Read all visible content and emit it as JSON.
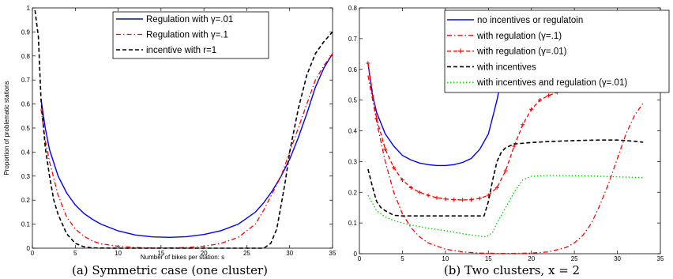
{
  "chart_data": [
    {
      "type": "line",
      "caption": "(a) Symmetric case (one cluster)",
      "xlabel": "Number of bikes per station: s",
      "ylabel": "Proportion of problematic stations",
      "xlim": [
        0,
        35
      ],
      "ylim": [
        0,
        1
      ],
      "xticks": [
        "0",
        "5",
        "10",
        "15",
        "20",
        "25",
        "30",
        "35"
      ],
      "yticks": [
        "0",
        "0.1",
        "0.2",
        "0.3",
        "0.4",
        "0.5",
        "0.6",
        "0.7",
        "0.8",
        "0.9",
        "1"
      ],
      "grid": false,
      "legend_position": "top-center",
      "series": [
        {
          "name": "Regulation with γ=.01",
          "color": "#0000ff",
          "style": "solid",
          "x": [
            1,
            1.5,
            2,
            3,
            4,
            5,
            6,
            7,
            8,
            10,
            12,
            14,
            16,
            18,
            20,
            22,
            24,
            26,
            27,
            28,
            29,
            30,
            31,
            32,
            33,
            34,
            35
          ],
          "y": [
            0.62,
            0.5,
            0.41,
            0.3,
            0.23,
            0.18,
            0.145,
            0.12,
            0.1,
            0.072,
            0.055,
            0.047,
            0.045,
            0.048,
            0.057,
            0.073,
            0.1,
            0.15,
            0.19,
            0.24,
            0.3,
            0.37,
            0.46,
            0.56,
            0.67,
            0.75,
            0.81
          ]
        },
        {
          "name": "Regulation with γ=.1",
          "color": "#ff0000",
          "style": "dashdot",
          "x": [
            1,
            1.5,
            2,
            3,
            4,
            5,
            6,
            7,
            8,
            10,
            12,
            14,
            16,
            18,
            20,
            22,
            24,
            26,
            27,
            28,
            29,
            30,
            31,
            32,
            33,
            34,
            35
          ],
          "y": [
            0.58,
            0.45,
            0.36,
            0.22,
            0.13,
            0.08,
            0.05,
            0.03,
            0.018,
            0.008,
            0.003,
            0.001,
            0.001,
            0.003,
            0.008,
            0.02,
            0.045,
            0.1,
            0.16,
            0.23,
            0.3,
            0.4,
            0.5,
            0.6,
            0.7,
            0.76,
            0.81
          ]
        },
        {
          "name": "incentive with r=1",
          "color": "#000000",
          "style": "dashed",
          "x": [
            0.3,
            0.7,
            1,
            1.5,
            2,
            2.5,
            3,
            4,
            5,
            6,
            7,
            10,
            15,
            20,
            25,
            27,
            27.8,
            28.5,
            29,
            29.5,
            30,
            31,
            32,
            33,
            34,
            35
          ],
          "y": [
            0.99,
            0.88,
            0.62,
            0.42,
            0.3,
            0.2,
            0.14,
            0.06,
            0.02,
            0.006,
            0.001,
            0,
            0,
            0,
            0,
            0,
            0.02,
            0.08,
            0.18,
            0.28,
            0.4,
            0.58,
            0.72,
            0.81,
            0.86,
            0.9
          ]
        }
      ]
    },
    {
      "type": "line",
      "caption": "(b) Two clusters, x = 2",
      "xlim": [
        0,
        35
      ],
      "ylim": [
        0,
        0.8
      ],
      "xticks": [
        "0",
        "5",
        "10",
        "15",
        "20",
        "25",
        "30",
        "35"
      ],
      "yticks": [
        "0",
        "0.1",
        "0.2",
        "0.3",
        "0.4",
        "0.5",
        "0.6",
        "0.7",
        "0.8"
      ],
      "grid": false,
      "legend_position": "top-right",
      "series": [
        {
          "name": "no incentives or regulatoin",
          "color": "#0000ff",
          "style": "solid",
          "x": [
            1,
            1.5,
            2,
            3,
            4,
            5,
            6,
            7,
            8,
            9,
            10,
            11,
            12,
            13,
            14,
            15,
            16,
            16.5
          ],
          "y": [
            0.62,
            0.52,
            0.46,
            0.39,
            0.35,
            0.32,
            0.305,
            0.295,
            0.29,
            0.287,
            0.287,
            0.29,
            0.297,
            0.31,
            0.34,
            0.39,
            0.5,
            0.57
          ]
        },
        {
          "name": "with regulation (γ=.1)",
          "color": "#ff0000",
          "style": "dashdot",
          "x": [
            1,
            2,
            3,
            4,
            5,
            6,
            7,
            8,
            10,
            12,
            14,
            16,
            18,
            20,
            22,
            24,
            25,
            26,
            27,
            28,
            29,
            30,
            31,
            32,
            33
          ],
          "y": [
            0.58,
            0.43,
            0.3,
            0.2,
            0.13,
            0.085,
            0.055,
            0.035,
            0.015,
            0.006,
            0.002,
            0.001,
            0.001,
            0.002,
            0.006,
            0.02,
            0.035,
            0.06,
            0.1,
            0.16,
            0.23,
            0.31,
            0.39,
            0.45,
            0.49
          ]
        },
        {
          "name": "with regulation (γ=.01)",
          "color": "#ff0000",
          "style": "dashed-plus",
          "x": [
            1,
            2,
            3,
            4,
            5,
            6,
            7,
            8,
            9,
            10,
            11,
            12,
            13,
            14,
            15,
            16,
            17,
            18,
            19,
            20,
            21,
            22,
            23,
            24,
            25,
            26,
            27,
            28,
            29,
            30,
            31,
            32,
            33
          ],
          "y": [
            0.62,
            0.44,
            0.34,
            0.28,
            0.24,
            0.215,
            0.2,
            0.19,
            0.182,
            0.178,
            0.176,
            0.175,
            0.176,
            0.18,
            0.19,
            0.215,
            0.27,
            0.35,
            0.42,
            0.47,
            0.5,
            0.515,
            0.525,
            0.53,
            0.532,
            0.533,
            0.534,
            0.534,
            0.534,
            0.534,
            0.534,
            0.534,
            0.534
          ]
        },
        {
          "name": "with incentives",
          "color": "#000000",
          "style": "dashed",
          "x": [
            1,
            1.5,
            2,
            2.5,
            3,
            4,
            5,
            10,
            14.5,
            15,
            15.5,
            16,
            16.5,
            17,
            18,
            20,
            22,
            24,
            26,
            28,
            30,
            31,
            32,
            33
          ],
          "y": [
            0.275,
            0.22,
            0.17,
            0.15,
            0.14,
            0.125,
            0.123,
            0.123,
            0.123,
            0.17,
            0.24,
            0.3,
            0.33,
            0.345,
            0.357,
            0.362,
            0.365,
            0.367,
            0.369,
            0.37,
            0.37,
            0.368,
            0.366,
            0.363
          ]
        },
        {
          "name": "with incentives and regulation (γ=.01)",
          "color": "#00cc00",
          "style": "dotted",
          "x": [
            1,
            2,
            3,
            4,
            5,
            6,
            8,
            10,
            12,
            14,
            14.8,
            15.5,
            16,
            17,
            18,
            19,
            20,
            22,
            25,
            28,
            30,
            33
          ],
          "y": [
            0.19,
            0.14,
            0.12,
            0.108,
            0.1,
            0.093,
            0.083,
            0.075,
            0.065,
            0.057,
            0.055,
            0.07,
            0.1,
            0.15,
            0.2,
            0.24,
            0.252,
            0.255,
            0.254,
            0.252,
            0.25,
            0.248
          ]
        }
      ]
    }
  ]
}
